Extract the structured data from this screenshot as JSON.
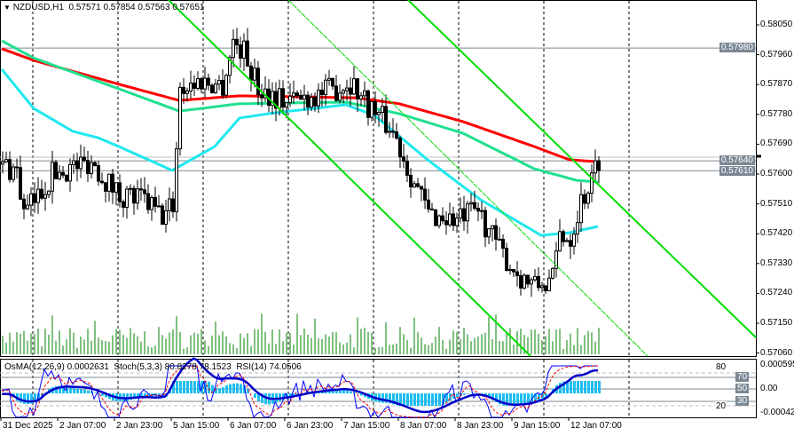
{
  "header": {
    "symbol": "NZDUSD,H1",
    "open": "0.57571",
    "high": "0.57854",
    "low": "0.57563",
    "close": "0.57651"
  },
  "indicator_label": {
    "osma": "OsMA(12,26,9) 0.0002631",
    "stoch": "Stoch(5,3,3) 80.8278 78.1523",
    "rsi": "RSI(14) 74.0506"
  },
  "price_axis": [
    "0.58050",
    "0.57960",
    "0.57870",
    "0.57780",
    "0.57690",
    "0.57600",
    "0.57510",
    "0.57420",
    "0.57330",
    "0.57240",
    "0.57150",
    "0.57060"
  ],
  "price_levels": [
    {
      "label": "0.57980",
      "value": 0.5798
    },
    {
      "label": "0.57640",
      "value": 0.5764
    },
    {
      "label": "0.57610",
      "value": 0.5761
    }
  ],
  "sub_axis": {
    "top": "0.000595",
    "l80": "80",
    "l70": "70",
    "l50": "50",
    "zero": "0.00",
    "l30": "30",
    "l20": "20",
    "bottom": "-0.000428"
  },
  "time_axis": [
    "31 Dec 2025",
    "2 Jan 07:00",
    "2 Jan 23:00",
    "5 Jan 15:00",
    "6 Jan 07:00",
    "6 Jan 23:00",
    "7 Jan 15:00",
    "8 Jan 07:00",
    "8 Jan 23:00",
    "9 Jan 15:00",
    "12 Jan 07:00"
  ],
  "colors": {
    "ma_slow": "#ff0000",
    "ma_mid": "#20e090",
    "ma_fast": "#20e8f0",
    "channel": "#00dd00",
    "osma": "#1ebef0",
    "rsi": "#0000c8",
    "stoch_main": "#0000ff",
    "stoch_signal": "#ff0000",
    "volume": "#008000"
  },
  "chart_data": {
    "type": "candlestick",
    "symbol": "NZDUSD",
    "timeframe": "H1",
    "ylim": [
      0.5706,
      0.5805
    ],
    "close_path": [
      [
        0,
        0.5763
      ],
      [
        4,
        0.5761
      ],
      [
        6,
        0.5748
      ],
      [
        9,
        0.5752
      ],
      [
        14,
        0.576
      ],
      [
        25,
        0.5764
      ],
      [
        30,
        0.5757
      ],
      [
        33,
        0.5754
      ],
      [
        40,
        0.5752
      ],
      [
        45,
        0.5747
      ],
      [
        48,
        0.5751
      ],
      [
        50,
        0.5786
      ],
      [
        56,
        0.5788
      ],
      [
        62,
        0.5787
      ],
      [
        65,
        0.58
      ],
      [
        68,
        0.5797
      ],
      [
        72,
        0.5786
      ],
      [
        80,
        0.5782
      ],
      [
        92,
        0.5785
      ],
      [
        98,
        0.5788
      ],
      [
        103,
        0.5781
      ],
      [
        110,
        0.5773
      ],
      [
        115,
        0.576
      ],
      [
        120,
        0.5748
      ],
      [
        128,
        0.5746
      ],
      [
        134,
        0.5749
      ],
      [
        140,
        0.5737
      ],
      [
        145,
        0.573
      ],
      [
        150,
        0.5726
      ],
      [
        155,
        0.5728
      ],
      [
        157,
        0.5742
      ],
      [
        160,
        0.5741
      ],
      [
        163,
        0.5752
      ],
      [
        166,
        0.5758
      ],
      [
        168,
        0.5765
      ]
    ],
    "ma_slow": [
      [
        0,
        0.57978
      ],
      [
        9,
        0.57943
      ],
      [
        33,
        0.57871
      ],
      [
        50,
        0.57822
      ],
      [
        67,
        0.57836
      ],
      [
        100,
        0.5783
      ],
      [
        112,
        0.57812
      ],
      [
        130,
        0.57758
      ],
      [
        150,
        0.57683
      ],
      [
        160,
        0.57643
      ],
      [
        168,
        0.57637
      ]
    ],
    "ma_mid": [
      [
        0,
        0.58002
      ],
      [
        9,
        0.5795
      ],
      [
        33,
        0.57857
      ],
      [
        50,
        0.5779
      ],
      [
        67,
        0.57812
      ],
      [
        97,
        0.57817
      ],
      [
        112,
        0.57782
      ],
      [
        130,
        0.57723
      ],
      [
        150,
        0.57616
      ],
      [
        162,
        0.57581
      ],
      [
        168,
        0.57576
      ]
    ],
    "ma_fast": [
      [
        0,
        0.57916
      ],
      [
        9,
        0.57798
      ],
      [
        20,
        0.57729
      ],
      [
        27,
        0.5771
      ],
      [
        33,
        0.57683
      ],
      [
        48,
        0.57611
      ],
      [
        60,
        0.57683
      ],
      [
        67,
        0.57769
      ],
      [
        75,
        0.57782
      ],
      [
        97,
        0.57809
      ],
      [
        105,
        0.57777
      ],
      [
        120,
        0.57643
      ],
      [
        135,
        0.57522
      ],
      [
        152,
        0.57415
      ],
      [
        160,
        0.57423
      ],
      [
        168,
        0.57442
      ]
    ]
  }
}
